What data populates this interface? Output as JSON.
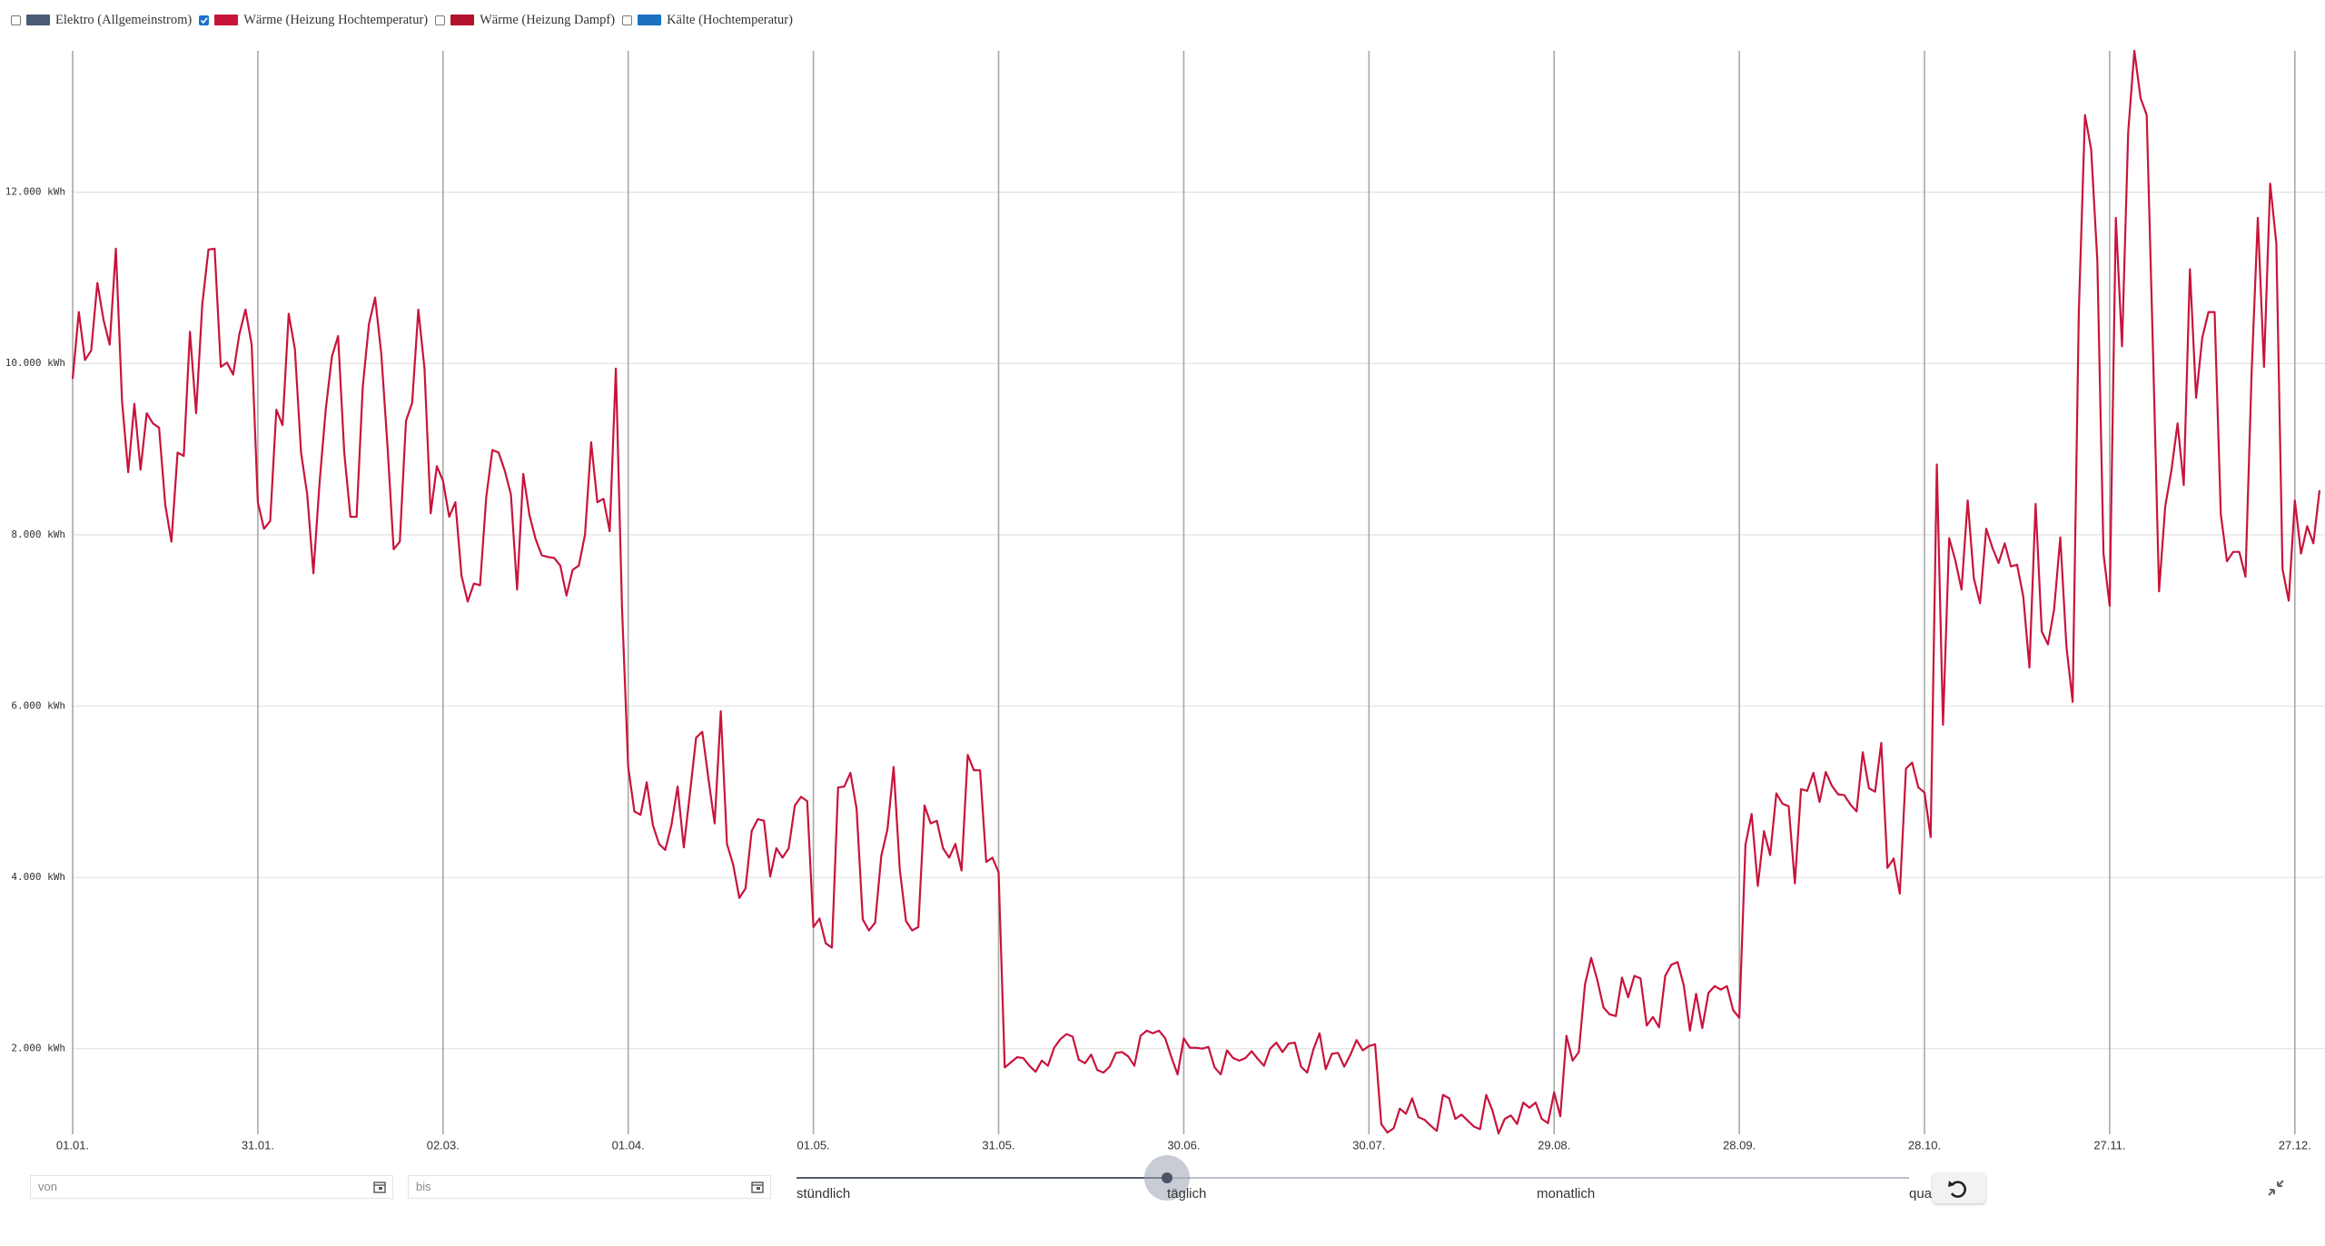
{
  "legend_items": [
    {
      "label": "Elektro (Allgemeinstrom)",
      "color": "#4b5b75",
      "checked": false
    },
    {
      "label": "Wärme (Heizung Hochtemperatur)",
      "color": "#c8143c",
      "checked": true
    },
    {
      "label": "Wärme (Heizung Dampf)",
      "color": "#b3122f",
      "checked": false
    },
    {
      "label": "Kälte (Hochtemperatur)",
      "color": "#1a72c0",
      "checked": false
    }
  ],
  "controls": {
    "from_placeholder": "von",
    "to_placeholder": "bis",
    "resolution_options": [
      "stündlich",
      "täglich",
      "monatlich",
      "quar"
    ]
  },
  "chart_data": {
    "type": "line",
    "color": "#c8143c",
    "grid": true,
    "ylim": [
      1000,
      13650
    ],
    "yticks": [
      {
        "value": 2000,
        "label": "2.000 kWh"
      },
      {
        "value": 4000,
        "label": "4.000 kWh"
      },
      {
        "value": 6000,
        "label": "6.000 kWh"
      },
      {
        "value": 8000,
        "label": "8.000 kWh"
      },
      {
        "value": 10000,
        "label": "10.000 kWh"
      },
      {
        "value": 12000,
        "label": "12.000 kWh"
      }
    ],
    "categories": [
      "01.01.",
      null,
      null,
      null,
      null,
      null,
      null,
      null,
      null,
      null,
      null,
      null,
      null,
      null,
      null,
      null,
      null,
      null,
      null,
      null,
      null,
      null,
      null,
      null,
      null,
      null,
      null,
      null,
      null,
      null,
      "31.01.",
      null,
      null,
      null,
      null,
      null,
      null,
      null,
      null,
      null,
      null,
      null,
      null,
      null,
      null,
      null,
      null,
      null,
      null,
      null,
      null,
      null,
      null,
      null,
      null,
      null,
      null,
      null,
      null,
      null,
      "02.03.",
      null,
      null,
      null,
      null,
      null,
      null,
      null,
      null,
      null,
      null,
      null,
      null,
      null,
      null,
      null,
      null,
      null,
      null,
      null,
      null,
      null,
      null,
      null,
      null,
      null,
      null,
      null,
      null,
      null,
      "01.04.",
      null,
      null,
      null,
      null,
      null,
      null,
      null,
      null,
      null,
      null,
      null,
      null,
      null,
      null,
      null,
      null,
      null,
      null,
      null,
      null,
      null,
      null,
      null,
      null,
      null,
      null,
      null,
      null,
      null,
      "01.05.",
      null,
      null,
      null,
      null,
      null,
      null,
      null,
      null,
      null,
      null,
      null,
      null,
      null,
      null,
      null,
      null,
      null,
      null,
      null,
      null,
      null,
      null,
      null,
      null,
      null,
      null,
      null,
      null,
      null,
      "31.05.",
      null,
      null,
      null,
      null,
      null,
      null,
      null,
      null,
      null,
      null,
      null,
      null,
      null,
      null,
      null,
      null,
      null,
      null,
      null,
      null,
      null,
      null,
      null,
      null,
      null,
      null,
      null,
      null,
      null,
      "30.06.",
      null,
      null,
      null,
      null,
      null,
      null,
      null,
      null,
      null,
      null,
      null,
      null,
      null,
      null,
      null,
      null,
      null,
      null,
      null,
      null,
      null,
      null,
      null,
      null,
      null,
      null,
      null,
      null,
      null,
      "30.07.",
      null,
      null,
      null,
      null,
      null,
      null,
      null,
      null,
      null,
      null,
      null,
      null,
      null,
      null,
      null,
      null,
      null,
      null,
      null,
      null,
      null,
      null,
      null,
      null,
      null,
      null,
      null,
      null,
      null,
      "29.08.",
      null,
      null,
      null,
      null,
      null,
      null,
      null,
      null,
      null,
      null,
      null,
      null,
      null,
      null,
      null,
      null,
      null,
      null,
      null,
      null,
      null,
      null,
      null,
      null,
      null,
      null,
      null,
      null,
      null,
      "28.09.",
      null,
      null,
      null,
      null,
      null,
      null,
      null,
      null,
      null,
      null,
      null,
      null,
      null,
      null,
      null,
      null,
      null,
      null,
      null,
      null,
      null,
      null,
      null,
      null,
      null,
      null,
      null,
      null,
      null,
      "28.10.",
      null,
      null,
      null,
      null,
      null,
      null,
      null,
      null,
      null,
      null,
      null,
      null,
      null,
      null,
      null,
      null,
      null,
      null,
      null,
      null,
      null,
      null,
      null,
      null,
      null,
      null,
      null,
      null,
      null,
      "27.11.",
      null,
      null,
      null,
      null,
      null,
      null,
      null,
      null,
      null,
      null,
      null,
      null,
      null,
      null,
      null,
      null,
      null,
      null,
      null,
      null,
      null,
      null,
      null,
      null,
      null,
      null,
      null,
      null,
      null,
      "27.12.",
      null,
      null,
      null,
      null
    ],
    "values": [
      9820,
      10600,
      10040,
      10150,
      10940,
      10510,
      10220,
      11340,
      9560,
      8730,
      9530,
      8760,
      9420,
      9300,
      9250,
      8350,
      7920,
      8960,
      8920,
      10370,
      9420,
      10690,
      11330,
      11340,
      9960,
      10010,
      9870,
      10340,
      10630,
      10220,
      8380,
      8070,
      8160,
      9460,
      9280,
      10580,
      10170,
      8960,
      8470,
      7550,
      8610,
      9460,
      10080,
      10320,
      8960,
      8210,
      8210,
      9730,
      10460,
      10770,
      10110,
      9040,
      7830,
      7920,
      9330,
      9540,
      10630,
      9940,
      8250,
      8800,
      8630,
      8210,
      8380,
      7520,
      7220,
      7430,
      7410,
      8440,
      8990,
      8960,
      8750,
      8470,
      7360,
      8710,
      8230,
      7950,
      7760,
      7740,
      7730,
      7640,
      7290,
      7590,
      7640,
      8000,
      9080,
      8380,
      8420,
      8040,
      9940,
      7140,
      5290,
      4770,
      4730,
      5110,
      4610,
      4390,
      4320,
      4610,
      5060,
      4350,
      4980,
      5630,
      5700,
      5150,
      4630,
      5940,
      4390,
      4150,
      3760,
      3870,
      4540,
      4680,
      4660,
      4010,
      4340,
      4230,
      4340,
      4840,
      4940,
      4890,
      3420,
      3520,
      3230,
      3180,
      5050,
      5060,
      5220,
      4800,
      3510,
      3380,
      3470,
      4250,
      4560,
      5290,
      4090,
      3490,
      3380,
      3420,
      4840,
      4630,
      4660,
      4340,
      4230,
      4390,
      4080,
      5430,
      5250,
      5250,
      4180,
      4230,
      4060,
      1780,
      1840,
      1900,
      1890,
      1800,
      1730,
      1860,
      1800,
      2010,
      2110,
      2170,
      2140,
      1870,
      1830,
      1930,
      1750,
      1720,
      1790,
      1950,
      1960,
      1910,
      1800,
      2150,
      2210,
      2180,
      2210,
      2120,
      1900,
      1700,
      2120,
      2010,
      2010,
      2000,
      2020,
      1780,
      1700,
      1980,
      1890,
      1860,
      1890,
      1970,
      1880,
      1800,
      2000,
      2070,
      1960,
      2060,
      2070,
      1790,
      1720,
      1990,
      2180,
      1760,
      1940,
      1950,
      1790,
      1930,
      2100,
      1980,
      2030,
      2050,
      1120,
      1020,
      1070,
      1300,
      1240,
      1420,
      1200,
      1170,
      1100,
      1040,
      1460,
      1420,
      1180,
      1230,
      1160,
      1090,
      1060,
      1460,
      1280,
      1010,
      1180,
      1220,
      1120,
      1370,
      1310,
      1370,
      1180,
      1130,
      1490,
      1210,
      2150,
      1860,
      1960,
      2750,
      3060,
      2800,
      2480,
      2400,
      2380,
      2830,
      2600,
      2850,
      2820,
      2270,
      2370,
      2250,
      2850,
      2980,
      3010,
      2740,
      2210,
      2640,
      2240,
      2650,
      2730,
      2690,
      2730,
      2450,
      2360,
      4380,
      4740,
      3900,
      4540,
      4260,
      4980,
      4860,
      4830,
      3930,
      5030,
      5010,
      5220,
      4880,
      5230,
      5070,
      4970,
      4960,
      4850,
      4770,
      5460,
      5040,
      5000,
      5570,
      4110,
      4220,
      3810,
      5270,
      5340,
      5050,
      4990,
      4470,
      8820,
      5780,
      7960,
      7700,
      7360,
      8400,
      7490,
      7200,
      8070,
      7850,
      7670,
      7900,
      7630,
      7650,
      7280,
      6450,
      8360,
      6870,
      6720,
      7130,
      7970,
      6690,
      6050,
      10600,
      12900,
      12500,
      11200,
      7780,
      7170,
      11700,
      10200,
      12700,
      13650,
      13100,
      12900,
      10200,
      7340,
      8330,
      8750,
      9300,
      8580,
      11100,
      9600,
      10300,
      10600,
      10600,
      8240,
      7690,
      7800,
      7800,
      7510,
      9900,
      11700,
      9960,
      12100,
      11400,
      7600,
      7230,
      8400,
      7780,
      8100,
      7900,
      8520
    ]
  }
}
